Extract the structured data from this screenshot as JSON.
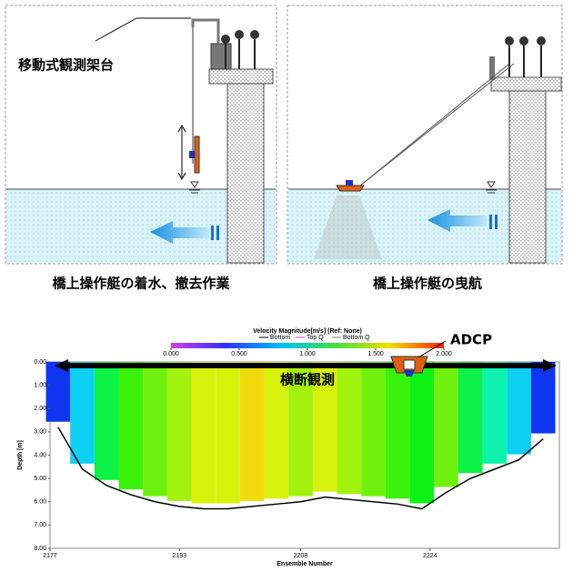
{
  "left_panel": {
    "label": "移動式観測架台",
    "caption": "橋上操作艇の着水、撤去作業"
  },
  "right_panel": {
    "caption": "橋上操作艇の曳航"
  },
  "chart_data": {
    "type": "heatmap",
    "title": "Velocity Magnitude[m/s] (Ref: None)",
    "legend": [
      {
        "name": "Bottom",
        "color": "#000000"
      },
      {
        "name": "Top Q",
        "color": "#e040c0"
      },
      {
        "name": "Bottom Q",
        "color": "#808080"
      }
    ],
    "colorbar": {
      "lim": [
        0,
        2
      ],
      "ticks": [
        {
          "value": 0,
          "label": "0.000"
        },
        {
          "value": 0.5,
          "label": "0.500"
        },
        {
          "value": 1,
          "label": "1.000"
        },
        {
          "value": 1.5,
          "label": "1.500"
        },
        {
          "value": 2,
          "label": "2.000"
        }
      ]
    },
    "annotations": [
      "ADCP",
      "横断観測"
    ],
    "x_label": "Ensemble Number",
    "y_label": "Depth [m]",
    "xlim": [
      2177,
      2240
    ],
    "xticks": [
      2177,
      2193,
      2208,
      2224
    ],
    "ylim": [
      0,
      8
    ],
    "y_inverted": true,
    "yticks": [
      {
        "value": 0,
        "label": "0.00"
      },
      {
        "value": 1,
        "label": "1.00"
      },
      {
        "value": 2,
        "label": "2.00"
      },
      {
        "value": 3,
        "label": "3.00"
      },
      {
        "value": 4,
        "label": "4.00"
      },
      {
        "value": 5,
        "label": "5.00"
      },
      {
        "value": 6,
        "label": "6.00"
      },
      {
        "value": 7,
        "label": "7.00"
      },
      {
        "value": 8,
        "label": "8.00"
      }
    ],
    "x": [
      2178,
      2181,
      2184,
      2187,
      2190,
      2193,
      2196,
      2199,
      2202,
      2205,
      2208,
      2211,
      2214,
      2217,
      2220,
      2223,
      2226,
      2229,
      2232,
      2235,
      2238
    ],
    "bottom_depth": [
      2.8,
      4.6,
      5.3,
      5.7,
      6.0,
      6.2,
      6.3,
      6.3,
      6.2,
      6.1,
      6.0,
      5.8,
      5.9,
      6.0,
      6.1,
      6.3,
      5.6,
      5.0,
      4.6,
      4.2,
      3.3
    ],
    "velocity": [
      0.3,
      0.6,
      1.0,
      1.2,
      1.3,
      1.4,
      1.5,
      1.5,
      1.6,
      1.5,
      1.4,
      1.5,
      1.4,
      1.3,
      1.2,
      1.1,
      1.3,
      1.0,
      0.8,
      0.6,
      0.3
    ]
  }
}
